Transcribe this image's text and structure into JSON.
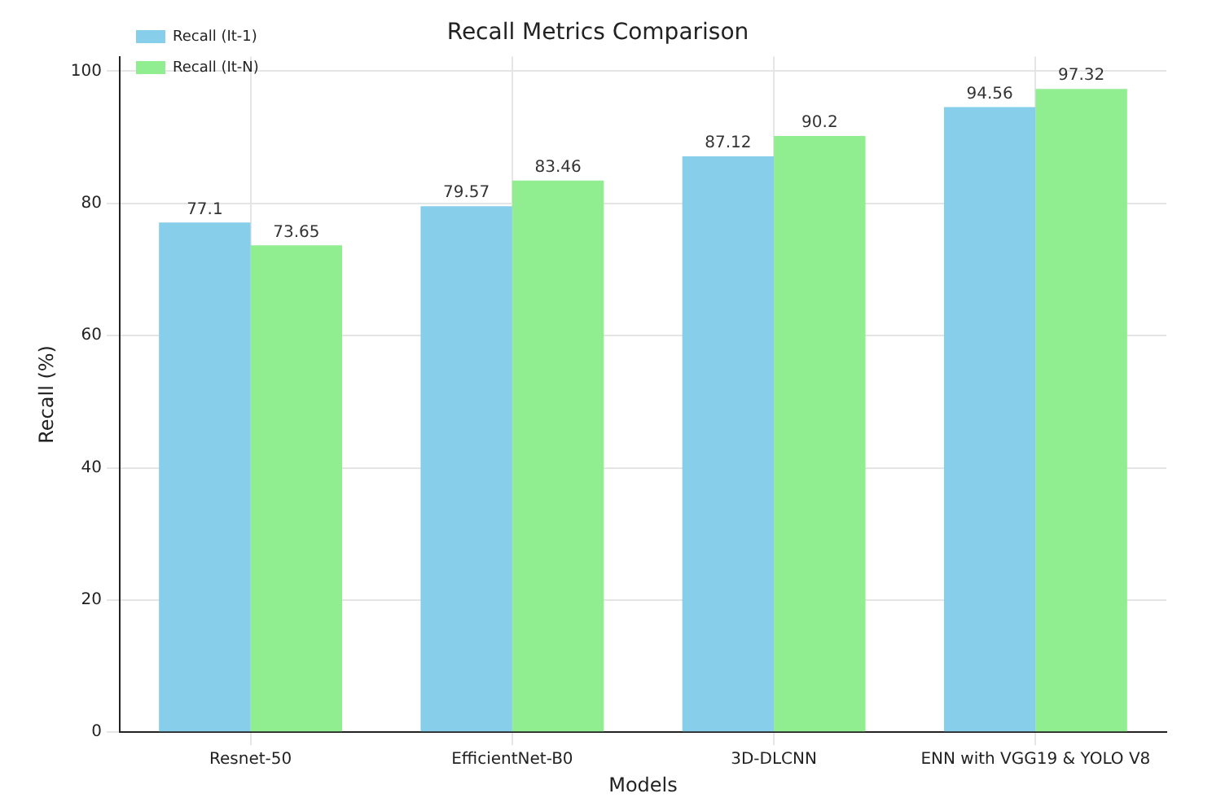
{
  "chart_data": {
    "type": "bar",
    "title": "Recall Metrics Comparison",
    "xlabel": "Models",
    "ylabel": "Recall (%)",
    "categories": [
      "Resnet-50",
      "EfficientNet-B0",
      "3D-DLCNN",
      "ENN with VGG19 & YOLO V8"
    ],
    "series": [
      {
        "name": "Recall (It-1)",
        "color": "#87ceeb",
        "values": [
          77.1,
          79.57,
          87.12,
          94.56
        ]
      },
      {
        "name": "Recall (It-N)",
        "color": "#90ee90",
        "values": [
          73.65,
          83.46,
          90.2,
          97.32
        ]
      }
    ],
    "ylim": [
      0,
      102.2
    ],
    "yticks": [
      0,
      20,
      40,
      60,
      80,
      100
    ],
    "grid": true,
    "legend": "top left",
    "data_labels": true
  }
}
